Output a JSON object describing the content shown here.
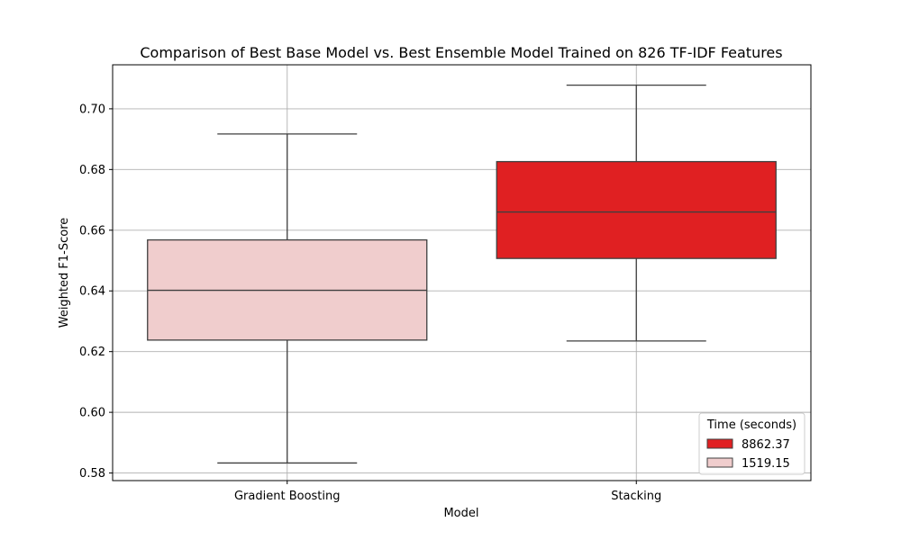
{
  "chart_data": {
    "type": "box",
    "title": "Comparison of Best Base Model vs. Best Ensemble Model Trained on 826 TF-IDF Features",
    "xlabel": "Model",
    "ylabel": "Weighted F1-Score",
    "ylim": [
      0.5775,
      0.7145
    ],
    "yticks": [
      0.58,
      0.6,
      0.62,
      0.64,
      0.66,
      0.68,
      0.7
    ],
    "ytick_labels": [
      "0.58",
      "0.60",
      "0.62",
      "0.64",
      "0.66",
      "0.68",
      "0.70"
    ],
    "grid": true,
    "categories": [
      "Gradient Boosting",
      "Stacking"
    ],
    "boxes": [
      {
        "category": "Gradient Boosting",
        "hue": "1519.15",
        "color": "#f0cdcd",
        "min": 0.5833,
        "q1": 0.6238,
        "median": 0.6402,
        "q3": 0.6568,
        "max": 0.6917
      },
      {
        "category": "Stacking",
        "hue": "8862.37",
        "color": "#e02022",
        "min": 0.6235,
        "q1": 0.6507,
        "median": 0.666,
        "q3": 0.6826,
        "max": 0.7078
      }
    ],
    "legend": {
      "title": "Time (seconds)",
      "position": "lower-right",
      "entries": [
        {
          "label": "8862.37",
          "color": "#e02022"
        },
        {
          "label": "1519.15",
          "color": "#f0cdcd"
        }
      ]
    }
  }
}
